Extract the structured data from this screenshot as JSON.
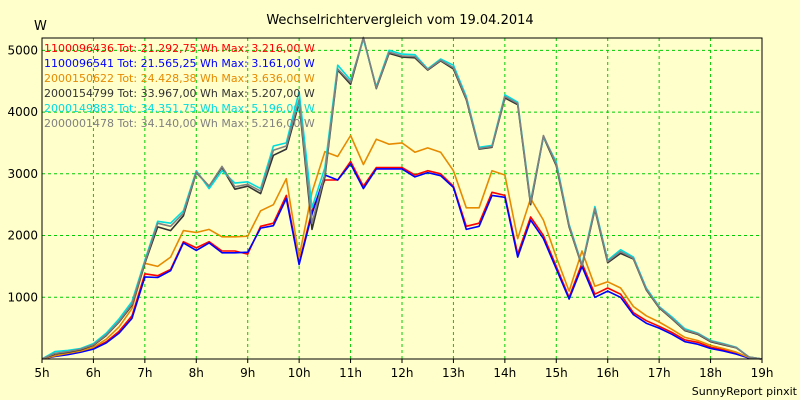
{
  "chart_data": {
    "type": "line",
    "title": "Wechselrichtervergleich vom 19.04.2014",
    "ylabel": "W",
    "footer": "SunnyReport pinxit",
    "ylim": [
      0,
      5200
    ],
    "yticks": [
      1000,
      2000,
      3000,
      4000,
      5000
    ],
    "xlim": [
      5,
      19
    ],
    "xticks": [
      5,
      6,
      7,
      8,
      9,
      10,
      11,
      12,
      13,
      14,
      15,
      16,
      17,
      18,
      19
    ],
    "xtick_suffix": "h",
    "grid": true,
    "legend_position": "top-left inside plot",
    "x": [
      5.0,
      5.25,
      5.5,
      5.75,
      6.0,
      6.25,
      6.5,
      6.75,
      7.0,
      7.25,
      7.5,
      7.75,
      8.0,
      8.25,
      8.5,
      8.75,
      9.0,
      9.25,
      9.5,
      9.75,
      10.0,
      10.25,
      10.5,
      10.75,
      11.0,
      11.25,
      11.5,
      11.75,
      12.0,
      12.25,
      12.5,
      12.75,
      13.0,
      13.25,
      13.5,
      13.75,
      14.0,
      14.25,
      14.5,
      14.75,
      15.0,
      15.25,
      15.5,
      15.75,
      16.0,
      16.25,
      16.5,
      16.75,
      17.0,
      17.25,
      17.5,
      17.75,
      18.0,
      18.25,
      18.5,
      18.75,
      19.0
    ],
    "series": [
      {
        "label": "1100096436 Tot: 21.292,75 Wh Max: 3.216,00 W",
        "color": "#ff0000",
        "values": [
          0,
          50,
          80,
          120,
          170,
          280,
          450,
          700,
          1380,
          1350,
          1450,
          1900,
          1800,
          1900,
          1750,
          1750,
          1700,
          2150,
          2200,
          2650,
          1550,
          2400,
          2900,
          2900,
          3200,
          2800,
          3100,
          3100,
          3100,
          2980,
          3050,
          3000,
          2800,
          2150,
          2200,
          2700,
          2650,
          1700,
          2300,
          2000,
          1500,
          1000,
          1550,
          1050,
          1150,
          1050,
          750,
          620,
          530,
          430,
          310,
          270,
          190,
          150,
          100,
          20,
          0
        ]
      },
      {
        "label": "1100096541 Tot: 21.565,25 Wh Max: 3.161,00 W",
        "color": "#0000ff",
        "values": [
          0,
          40,
          70,
          110,
          160,
          260,
          420,
          660,
          1330,
          1320,
          1430,
          1880,
          1760,
          1880,
          1720,
          1720,
          1730,
          2120,
          2160,
          2600,
          1530,
          2350,
          2980,
          2900,
          3160,
          2760,
          3080,
          3080,
          3080,
          2950,
          3020,
          2970,
          2780,
          2100,
          2150,
          2650,
          2620,
          1650,
          2250,
          1950,
          1460,
          970,
          1500,
          1000,
          1100,
          1000,
          720,
          580,
          500,
          400,
          280,
          240,
          170,
          130,
          80,
          15,
          0
        ]
      },
      {
        "label": "2000150622 Tot: 24.428,38 Wh Max: 3.636,00 W",
        "color": "#e68a00",
        "values": [
          0,
          50,
          90,
          130,
          190,
          320,
          520,
          820,
          1550,
          1500,
          1650,
          2080,
          2050,
          2100,
          1980,
          1980,
          1990,
          2400,
          2500,
          2920,
          1650,
          2700,
          3360,
          3280,
          3620,
          3150,
          3560,
          3480,
          3500,
          3350,
          3420,
          3350,
          3050,
          2450,
          2450,
          3050,
          2980,
          1950,
          2600,
          2250,
          1650,
          1100,
          1750,
          1180,
          1250,
          1150,
          850,
          700,
          600,
          480,
          350,
          300,
          220,
          170,
          110,
          25,
          0
        ]
      },
      {
        "label": "2000154799 Tot: 33.967,00 Wh Max: 5.207,00 W",
        "color": "#333333",
        "values": [
          0,
          80,
          110,
          150,
          220,
          380,
          600,
          870,
          1550,
          2140,
          2080,
          2320,
          3020,
          2800,
          3100,
          2750,
          2800,
          2680,
          3300,
          3400,
          4150,
          2100,
          2950,
          4680,
          4450,
          5200,
          4380,
          4950,
          4890,
          4880,
          4680,
          4830,
          4700,
          4200,
          3400,
          3430,
          4230,
          4120,
          2500,
          3600,
          3130,
          2140,
          1500,
          2420,
          1560,
          1710,
          1620,
          1120,
          830,
          650,
          460,
          400,
          280,
          230,
          180,
          30,
          0
        ]
      },
      {
        "label": "2000149883 Tot: 34.351,75 Wh Max: 5.196,00 W",
        "color": "#00dddd",
        "values": [
          0,
          120,
          140,
          170,
          250,
          420,
          650,
          930,
          1600,
          2230,
          2200,
          2400,
          3050,
          2760,
          3050,
          2850,
          2870,
          2760,
          3450,
          3500,
          4330,
          2450,
          3100,
          4760,
          4520,
          5180,
          4410,
          5000,
          4940,
          4930,
          4700,
          4860,
          4760,
          4250,
          3430,
          3460,
          4280,
          4160,
          2560,
          3600,
          3190,
          2180,
          1530,
          2470,
          1600,
          1770,
          1650,
          1150,
          850,
          680,
          490,
          420,
          300,
          250,
          190,
          30,
          0
        ]
      },
      {
        "label": "2000001478 Tot: 34.140,00 Wh Max: 5.216,00 W",
        "color": "#808080",
        "values": [
          0,
          90,
          120,
          160,
          230,
          390,
          610,
          890,
          1570,
          2200,
          2150,
          2360,
          3030,
          2800,
          3120,
          2790,
          2830,
          2720,
          3380,
          3450,
          4200,
          2200,
          3000,
          4700,
          4480,
          5210,
          4390,
          4970,
          4910,
          4900,
          4690,
          4840,
          4720,
          4220,
          3410,
          3440,
          4250,
          4140,
          2530,
          3620,
          3150,
          2160,
          1510,
          2440,
          1580,
          1740,
          1630,
          1130,
          840,
          660,
          470,
          410,
          290,
          240,
          185,
          30,
          0
        ]
      }
    ]
  }
}
